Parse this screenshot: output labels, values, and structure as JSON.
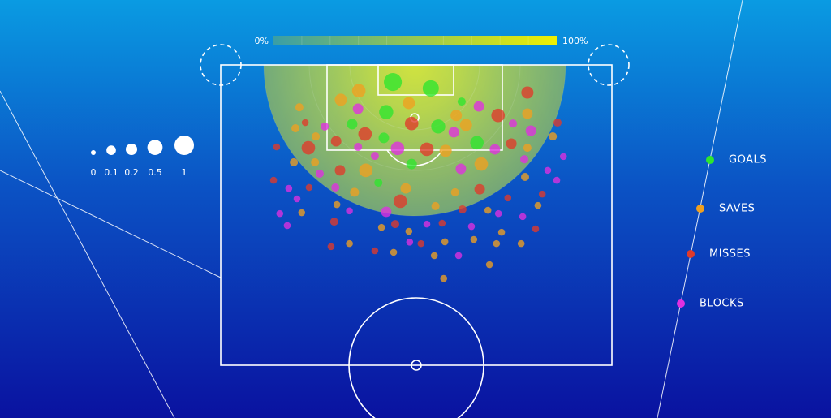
{
  "chart_data": {
    "type": "scatter",
    "xlim": [
      0,
      100
    ],
    "ylim": [
      0,
      100
    ],
    "colorbar": {
      "ticks": [
        {
          "value": 0,
          "label": "0%"
        },
        {
          "value": 100,
          "label": "100%"
        }
      ],
      "colors": [
        "#3a9ea6",
        "#f0f000"
      ]
    },
    "size_legend": {
      "values": [
        0,
        0.1,
        0.2,
        0.5,
        1
      ]
    },
    "series": [
      {
        "name": "GOALS",
        "color": "#2ee62e",
        "x": [
          44.0,
          53.7,
          42.3,
          55.6,
          65.5,
          33.6,
          41.7,
          48.8,
          61.6,
          40.3
        ],
        "y": [
          5.7,
          7.8,
          15.7,
          20.5,
          25.9,
          19.7,
          24.3,
          33.0,
          12.2,
          39.2
        ],
        "sizes": [
          0.8,
          0.6,
          0.4,
          0.4,
          0.35,
          0.15,
          0.15,
          0.15,
          0.05,
          0.05
        ]
      },
      {
        "name": "SAVES",
        "color": "#f0a020",
        "x": [
          35.3,
          30.7,
          48.1,
          60.2,
          62.7,
          78.4,
          57.5,
          66.6,
          37.1,
          20.1,
          19.1,
          24.3,
          18.7,
          24.1,
          34.2,
          47.3,
          54.9,
          59.9,
          78.4,
          77.8,
          84.9,
          68.3,
          71.8,
          64.7,
          70.5,
          57.3,
          54.6,
          68.7,
          57.0,
          44.2,
          32.9,
          41.1,
          48.1,
          29.7,
          20.7,
          81.1,
          76.8
        ],
        "y": [
          8.6,
          11.6,
          12.7,
          16.8,
          20.0,
          16.2,
          28.6,
          33.0,
          35.1,
          14.1,
          21.1,
          23.8,
          32.4,
          32.4,
          42.4,
          41.1,
          47.0,
          42.4,
          27.6,
          37.3,
          23.8,
          48.4,
          55.7,
          58.1,
          59.5,
          58.9,
          63.5,
          66.5,
          71.1,
          62.4,
          59.5,
          54.1,
          55.4,
          46.5,
          49.2,
          46.8,
          59.5
        ],
        "sizes": [
          0.35,
          0.25,
          0.25,
          0.2,
          0.25,
          0.15,
          0.25,
          0.35,
          0.35,
          0.05,
          0.05,
          0.05,
          0.05,
          0.05,
          0.08,
          0.15,
          0.05,
          0.05,
          0.05,
          0.05,
          0.05,
          0.02,
          0.02,
          0.02,
          0.02,
          0.02,
          0.02,
          0.02,
          0.02,
          0.02,
          0.02,
          0.02,
          0.02,
          0.02,
          0.02,
          0.02,
          0.02
        ]
      },
      {
        "name": "MISSES",
        "color": "#e03a2a",
        "x": [
          78.4,
          70.9,
          48.8,
          36.9,
          52.7,
          22.4,
          29.5,
          30.5,
          45.9,
          74.3,
          66.2,
          21.6,
          14.3,
          13.5,
          22.6,
          29.0,
          44.6,
          56.6,
          51.2,
          39.4,
          28.2,
          73.4,
          80.5,
          82.2,
          86.1,
          61.8
        ],
        "y": [
          9.2,
          16.8,
          19.5,
          23.0,
          28.1,
          27.6,
          25.4,
          35.1,
          45.4,
          26.2,
          41.4,
          19.2,
          27.3,
          38.4,
          40.8,
          52.2,
          53.0,
          52.7,
          59.5,
          61.9,
          60.5,
          44.3,
          54.6,
          43.0,
          19.2,
          48.1
        ],
        "sizes": [
          0.25,
          0.35,
          0.35,
          0.35,
          0.35,
          0.35,
          0.15,
          0.15,
          0.35,
          0.15,
          0.15,
          0.02,
          0.02,
          0.02,
          0.02,
          0.05,
          0.05,
          0.02,
          0.02,
          0.02,
          0.02,
          0.02,
          0.02,
          0.02,
          0.05,
          0.05
        ]
      },
      {
        "name": "BLOCKS",
        "color": "#e030e0",
        "x": [
          35.1,
          66.0,
          59.6,
          45.2,
          70.1,
          79.3,
          61.4,
          42.3,
          26.6,
          35.1,
          39.4,
          74.7,
          77.6,
          25.3,
          29.3,
          17.4,
          19.5,
          15.1,
          17.0,
          32.9,
          48.3,
          52.7,
          60.8,
          64.1,
          71.0,
          77.2,
          85.9,
          87.6,
          83.6
        ],
        "y": [
          14.6,
          13.8,
          22.4,
          27.8,
          28.1,
          21.9,
          34.6,
          48.9,
          20.5,
          27.3,
          30.3,
          19.5,
          31.4,
          36.2,
          40.8,
          41.1,
          44.6,
          49.5,
          53.5,
          48.6,
          59.0,
          53.0,
          63.5,
          53.8,
          49.5,
          50.5,
          38.4,
          30.5,
          35.1
        ],
        "sizes": [
          0.15,
          0.15,
          0.15,
          0.35,
          0.15,
          0.15,
          0.15,
          0.15,
          0.05,
          0.05,
          0.05,
          0.05,
          0.05,
          0.05,
          0.05,
          0.02,
          0.02,
          0.02,
          0.02,
          0.02,
          0.02,
          0.02,
          0.02,
          0.02,
          0.02,
          0.02,
          0.02,
          0.02,
          0.02
        ]
      }
    ]
  }
}
